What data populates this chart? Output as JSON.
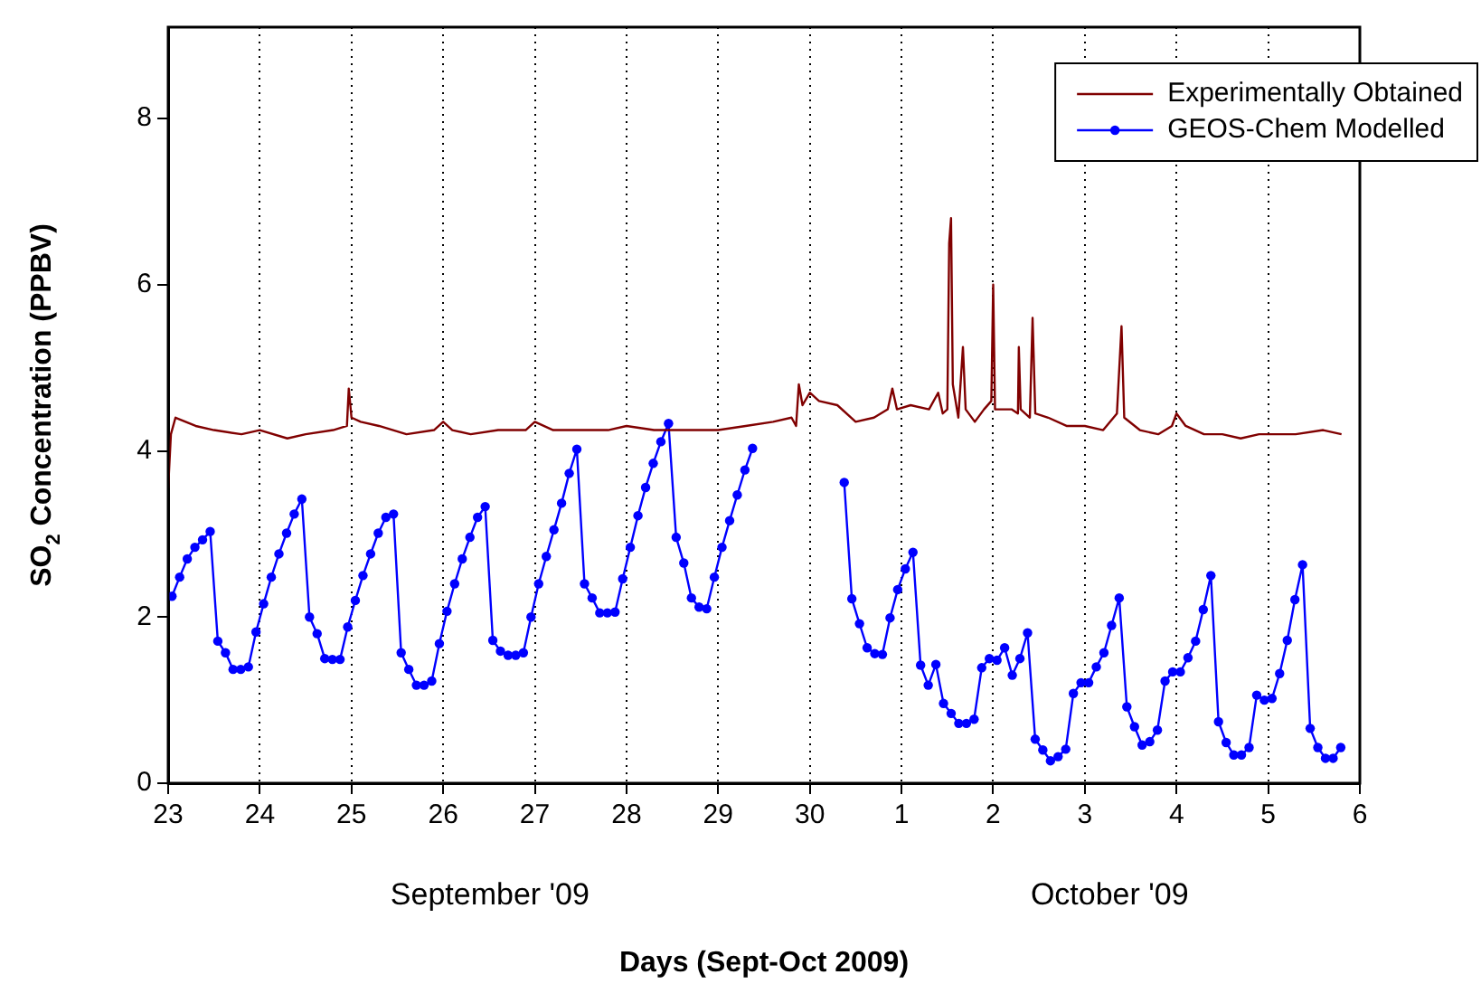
{
  "chart_data": {
    "type": "line",
    "xlabel": "Days (Sept-Oct 2009)",
    "ylabel": "SO$_{2}$ Concentration (PPBV)",
    "xlim": [
      "2009-09-23",
      "2009-10-06"
    ],
    "ylim": [
      0,
      9.1
    ],
    "xticks": [
      {
        "value": "2009-09-23",
        "label": "23"
      },
      {
        "value": "2009-09-24",
        "label": "24"
      },
      {
        "value": "2009-09-25",
        "label": "25"
      },
      {
        "value": "2009-09-26",
        "label": "26"
      },
      {
        "value": "2009-09-27",
        "label": "27"
      },
      {
        "value": "2009-09-28",
        "label": "28"
      },
      {
        "value": "2009-09-29",
        "label": "29"
      },
      {
        "value": "2009-09-30",
        "label": "30"
      },
      {
        "value": "2009-10-01",
        "label": "1"
      },
      {
        "value": "2009-10-02",
        "label": "2"
      },
      {
        "value": "2009-10-03",
        "label": "3"
      },
      {
        "value": "2009-10-04",
        "label": "4"
      },
      {
        "value": "2009-10-05",
        "label": "5"
      },
      {
        "value": "2009-10-06",
        "label": "6"
      }
    ],
    "yticks": [
      0,
      2,
      4,
      6,
      8
    ],
    "grid": "x",
    "legend": "top right",
    "annotations": [
      "September '09",
      "October '09"
    ],
    "series": [
      {
        "name": "Experimentally Obtained",
        "color": "#800000",
        "marker": "none",
        "x": [
          "2009-09-23T00:00",
          "2009-09-23T00:43",
          "2009-09-23T01:55",
          "2009-09-23T07:12",
          "2009-09-23T12:00",
          "2009-09-23T19:12",
          "2009-09-24T00:00",
          "2009-09-24T07:12",
          "2009-09-24T12:00",
          "2009-09-24T19:12",
          "2009-09-24T22:48",
          "2009-09-24T23:17",
          "2009-09-25T00:00",
          "2009-09-25T02:24",
          "2009-09-25T07:12",
          "2009-09-25T14:24",
          "2009-09-25T21:36",
          "2009-09-26T00:00",
          "2009-09-26T02:24",
          "2009-09-26T07:12",
          "2009-09-26T14:24",
          "2009-09-26T21:36",
          "2009-09-27T00:00",
          "2009-09-27T04:48",
          "2009-09-27T12:00",
          "2009-09-27T19:12",
          "2009-09-28T00:00",
          "2009-09-28T07:12",
          "2009-09-28T14:24",
          "2009-09-29T00:00",
          "2009-09-29T07:12",
          "2009-09-29T14:24",
          "2009-09-29T19:12",
          "2009-09-29T20:24",
          "2009-09-29T21:07",
          "2009-09-29T22:05",
          "2009-09-30T00:00",
          "2009-09-30T02:24",
          "2009-09-30T07:12",
          "2009-09-30T12:00",
          "2009-09-30T16:48",
          "2009-09-30T20:24",
          "2009-09-30T21:36",
          "2009-09-30T22:48",
          "2009-10-01T02:24",
          "2009-10-01T07:12",
          "2009-10-01T09:36",
          "2009-10-01T10:48",
          "2009-10-01T12:00",
          "2009-10-01T12:29",
          "2009-10-01T12:58",
          "2009-10-01T13:26",
          "2009-10-01T14:53",
          "2009-10-01T16:05",
          "2009-10-01T16:48",
          "2009-10-01T19:12",
          "2009-10-01T21:36",
          "2009-10-01T23:31",
          "2009-10-02T00:00",
          "2009-10-02T00:29",
          "2009-10-02T04:48",
          "2009-10-02T06:29",
          "2009-10-02T06:43",
          "2009-10-02T07:12",
          "2009-10-02T09:36",
          "2009-10-02T10:19",
          "2009-10-02T11:02",
          "2009-10-02T14:24",
          "2009-10-02T19:12",
          "2009-10-03T00:00",
          "2009-10-03T04:48",
          "2009-10-03T08:24",
          "2009-10-03T09:36",
          "2009-10-03T10:19",
          "2009-10-03T14:24",
          "2009-10-03T19:12",
          "2009-10-03T22:48",
          "2009-10-04T00:00",
          "2009-10-04T02:24",
          "2009-10-04T07:12",
          "2009-10-04T12:00",
          "2009-10-04T16:48",
          "2009-10-04T21:36",
          "2009-10-05T02:24",
          "2009-10-05T07:12",
          "2009-10-05T14:24",
          "2009-10-05T19:12"
        ],
        "values": [
          3.55,
          4.2,
          4.4,
          4.3,
          4.25,
          4.2,
          4.25,
          4.15,
          4.2,
          4.25,
          4.3,
          4.75,
          4.4,
          4.35,
          4.3,
          4.2,
          4.25,
          4.35,
          4.25,
          4.2,
          4.25,
          4.25,
          4.35,
          4.25,
          4.25,
          4.25,
          4.3,
          4.25,
          4.25,
          4.25,
          4.3,
          4.35,
          4.4,
          4.3,
          4.8,
          4.55,
          4.7,
          4.6,
          4.55,
          4.35,
          4.4,
          4.5,
          4.75,
          4.5,
          4.55,
          4.5,
          4.7,
          4.45,
          4.5,
          6.5,
          6.8,
          4.8,
          4.4,
          5.25,
          4.5,
          4.35,
          4.5,
          4.6,
          6.0,
          4.5,
          4.5,
          4.45,
          5.25,
          4.5,
          4.4,
          5.6,
          4.45,
          4.4,
          4.3,
          4.3,
          4.25,
          4.45,
          5.5,
          4.4,
          4.25,
          4.2,
          4.3,
          4.45,
          4.3,
          4.2,
          4.2,
          4.15,
          4.2,
          4.2,
          4.2,
          4.25,
          4.2
        ]
      },
      {
        "name": "GEOS-Chem Modelled",
        "color": "#0000ff",
        "marker": "circle",
        "x": [
          "2009-09-23T01:00",
          "2009-09-23T03:00",
          "2009-09-23T05:00",
          "2009-09-23T07:00",
          "2009-09-23T09:00",
          "2009-09-23T11:00",
          "2009-09-23T13:00",
          "2009-09-23T15:00",
          "2009-09-23T17:00",
          "2009-09-23T19:00",
          "2009-09-23T21:00",
          "2009-09-23T23:00",
          "2009-09-24T01:00",
          "2009-09-24T03:00",
          "2009-09-24T05:00",
          "2009-09-24T07:00",
          "2009-09-24T09:00",
          "2009-09-24T11:00",
          "2009-09-24T13:00",
          "2009-09-24T15:00",
          "2009-09-24T17:00",
          "2009-09-24T19:00",
          "2009-09-24T21:00",
          "2009-09-24T23:00",
          "2009-09-25T01:00",
          "2009-09-25T03:00",
          "2009-09-25T05:00",
          "2009-09-25T07:00",
          "2009-09-25T09:00",
          "2009-09-25T11:00",
          "2009-09-25T13:00",
          "2009-09-25T15:00",
          "2009-09-25T17:00",
          "2009-09-25T19:00",
          "2009-09-25T21:00",
          "2009-09-25T23:00",
          "2009-09-26T01:00",
          "2009-09-26T03:00",
          "2009-09-26T05:00",
          "2009-09-26T07:00",
          "2009-09-26T09:00",
          "2009-09-26T11:00",
          "2009-09-26T13:00",
          "2009-09-26T15:00",
          "2009-09-26T17:00",
          "2009-09-26T19:00",
          "2009-09-26T21:00",
          "2009-09-26T23:00",
          "2009-09-27T01:00",
          "2009-09-27T03:00",
          "2009-09-27T05:00",
          "2009-09-27T07:00",
          "2009-09-27T09:00",
          "2009-09-27T11:00",
          "2009-09-27T13:00",
          "2009-09-27T15:00",
          "2009-09-27T17:00",
          "2009-09-27T19:00",
          "2009-09-27T21:00",
          "2009-09-27T23:00",
          "2009-09-28T01:00",
          "2009-09-28T03:00",
          "2009-09-28T05:00",
          "2009-09-28T07:00",
          "2009-09-28T09:00",
          "2009-09-28T11:00",
          "2009-09-28T13:00",
          "2009-09-28T15:00",
          "2009-09-28T17:00",
          "2009-09-28T19:00",
          "2009-09-28T21:00",
          "2009-09-28T23:00",
          "2009-09-29T01:00",
          "2009-09-29T03:00",
          "2009-09-29T05:00",
          "2009-09-29T07:00",
          "2009-09-29T09:00",
          "2009-09-30T00:00",
          "2009-09-30T09:00",
          "2009-09-30T11:00",
          "2009-09-30T13:00",
          "2009-09-30T15:00",
          "2009-09-30T17:00",
          "2009-09-30T19:00",
          "2009-09-30T21:00",
          "2009-09-30T23:00",
          "2009-10-01T01:00",
          "2009-10-01T03:00",
          "2009-10-01T05:00",
          "2009-10-01T07:00",
          "2009-10-01T09:00",
          "2009-10-01T11:00",
          "2009-10-01T13:00",
          "2009-10-01T15:00",
          "2009-10-01T17:00",
          "2009-10-01T19:00",
          "2009-10-01T21:00",
          "2009-10-01T23:00",
          "2009-10-02T01:00",
          "2009-10-02T03:00",
          "2009-10-02T05:00",
          "2009-10-02T07:00",
          "2009-10-02T09:00",
          "2009-10-02T11:00",
          "2009-10-02T13:00",
          "2009-10-02T15:00",
          "2009-10-02T17:00",
          "2009-10-02T19:00",
          "2009-10-02T21:00",
          "2009-10-02T23:00",
          "2009-10-03T01:00",
          "2009-10-03T03:00",
          "2009-10-03T05:00",
          "2009-10-03T07:00",
          "2009-10-03T09:00",
          "2009-10-03T11:00",
          "2009-10-03T13:00",
          "2009-10-03T15:00",
          "2009-10-03T17:00",
          "2009-10-03T19:00",
          "2009-10-03T21:00",
          "2009-10-03T23:00",
          "2009-10-04T01:00",
          "2009-10-04T03:00",
          "2009-10-04T05:00",
          "2009-10-04T07:00",
          "2009-10-04T09:00",
          "2009-10-04T11:00",
          "2009-10-04T13:00",
          "2009-10-04T15:00",
          "2009-10-04T17:00",
          "2009-10-04T19:00",
          "2009-10-04T21:00",
          "2009-10-04T23:00",
          "2009-10-05T01:00",
          "2009-10-05T03:00",
          "2009-10-05T05:00",
          "2009-10-05T07:00",
          "2009-10-05T09:00",
          "2009-10-05T11:00",
          "2009-10-05T13:00",
          "2009-10-05T15:00",
          "2009-10-05T17:00",
          "2009-10-05T19:00"
        ],
        "values": [
          2.25,
          2.48,
          2.7,
          2.84,
          2.93,
          3.03,
          1.71,
          1.57,
          1.37,
          1.37,
          1.4,
          1.82,
          2.16,
          2.48,
          2.76,
          3.01,
          3.24,
          3.42,
          2.0,
          1.8,
          1.5,
          1.49,
          1.49,
          1.88,
          2.2,
          2.5,
          2.76,
          3.01,
          3.2,
          3.24,
          1.57,
          1.37,
          1.18,
          1.18,
          1.23,
          1.68,
          2.07,
          2.4,
          2.7,
          2.96,
          3.2,
          3.33,
          1.72,
          1.59,
          1.54,
          1.54,
          1.57,
          2.0,
          2.4,
          2.73,
          3.05,
          3.37,
          3.73,
          4.02,
          2.4,
          2.23,
          2.05,
          2.05,
          2.06,
          2.46,
          2.84,
          3.22,
          3.56,
          3.85,
          4.11,
          4.33,
          2.96,
          2.65,
          2.23,
          2.12,
          2.1,
          2.48,
          2.84,
          3.16,
          3.47,
          3.77,
          4.03,
          null,
          3.62,
          2.22,
          1.92,
          1.63,
          1.56,
          1.55,
          1.99,
          2.33,
          2.58,
          2.78,
          1.42,
          1.18,
          1.43,
          0.96,
          0.84,
          0.72,
          0.72,
          0.77,
          1.39,
          1.5,
          1.48,
          1.63,
          1.3,
          1.5,
          1.81,
          0.53,
          0.4,
          0.27,
          0.32,
          0.41,
          1.08,
          1.21,
          1.21,
          1.4,
          1.57,
          1.9,
          2.23,
          0.92,
          0.68,
          0.46,
          0.5,
          0.64,
          1.23,
          1.34,
          1.34,
          1.51,
          1.71,
          2.09,
          2.5,
          0.74,
          0.49,
          0.34,
          0.34,
          0.43,
          1.06,
          1.0,
          1.02,
          1.32,
          1.72,
          2.21,
          2.63,
          0.66,
          0.43,
          0.3,
          0.3,
          0.43
        ]
      }
    ]
  }
}
